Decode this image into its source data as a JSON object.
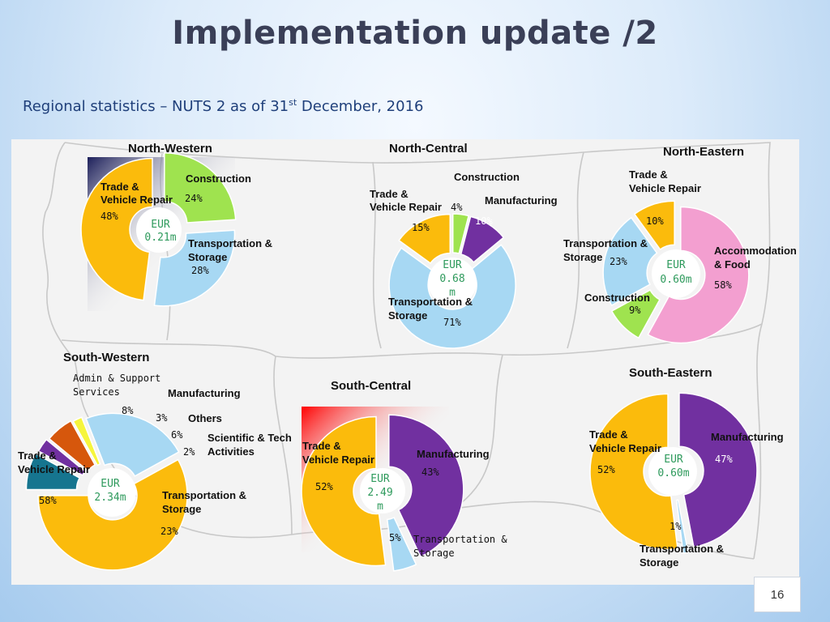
{
  "header": {
    "title": "Implementation update /2",
    "subtitle_prefix": "Regional statistics – NUTS 2 as of 31",
    "subtitle_sup": "st",
    "subtitle_suffix": " December, 2016"
  },
  "page_number": "16",
  "colors": {
    "trade": "#fbbb0c",
    "construction": "#9fe34f",
    "transport": "#a7d8f3",
    "manufacturing": "#7130a0",
    "accommodation": "#f39fd0",
    "admin": "#16758f",
    "others": "#d6570c",
    "scientific": "#f6f53c",
    "eur_text": "#2e9a5c"
  },
  "chart_data": [
    {
      "type": "pie",
      "region": "North-Western",
      "center_label": [
        "EUR",
        "0.21m"
      ],
      "slices": [
        {
          "label": "Trade & Vehicle Repair",
          "value": 48,
          "pct": "48%"
        },
        {
          "label": "Construction",
          "value": 24,
          "pct": "24%"
        },
        {
          "label": "Transportation & Storage",
          "value": 28,
          "pct": "28%"
        }
      ]
    },
    {
      "type": "pie",
      "region": "North-Central",
      "center_label": [
        "EUR",
        "0.68",
        "m"
      ],
      "slices": [
        {
          "label": "Trade & Vehicle Repair",
          "value": 15,
          "pct": "15%"
        },
        {
          "label": "Construction",
          "value": 4,
          "pct": "4%"
        },
        {
          "label": "Manufacturing",
          "value": 10,
          "pct": "10%"
        },
        {
          "label": "Transportation & Storage",
          "value": 71,
          "pct": "71%"
        }
      ]
    },
    {
      "type": "pie",
      "region": "North-Eastern",
      "center_label": [
        "EUR",
        "0.60m"
      ],
      "slices": [
        {
          "label": "Trade & Vehicle Repair",
          "value": 10,
          "pct": "10%"
        },
        {
          "label": "Transportation & Storage",
          "value": 23,
          "pct": "23%"
        },
        {
          "label": "Construction",
          "value": 9,
          "pct": "9%"
        },
        {
          "label": "Accommodation & Food",
          "value": 58,
          "pct": "58%"
        }
      ]
    },
    {
      "type": "pie",
      "region": "South-Western",
      "center_label": [
        "EUR",
        "2.34m"
      ],
      "slices": [
        {
          "label": "Trade & Vehicle Repair",
          "value": 58,
          "pct": "58%"
        },
        {
          "label": "Admin & Support Services",
          "value": 8,
          "pct": "8%"
        },
        {
          "label": "Manufacturing",
          "value": 3,
          "pct": "3%"
        },
        {
          "label": "Others",
          "value": 6,
          "pct": "6%"
        },
        {
          "label": "Scientific & Tech Activities",
          "value": 2,
          "pct": "2%"
        },
        {
          "label": "Transportation & Storage",
          "value": 23,
          "pct": "23%"
        }
      ]
    },
    {
      "type": "pie",
      "region": "South-Central",
      "center_label": [
        "EUR",
        "2.49",
        "m"
      ],
      "slices": [
        {
          "label": "Trade & Vehicle Repair",
          "value": 52,
          "pct": "52%"
        },
        {
          "label": "Manufacturing",
          "value": 43,
          "pct": "43%"
        },
        {
          "label": "Transportation & Storage",
          "value": 5,
          "pct": "5%"
        }
      ]
    },
    {
      "type": "pie",
      "region": "South-Eastern",
      "center_label": [
        "EUR",
        "0.60m"
      ],
      "slices": [
        {
          "label": "Trade & Vehicle Repair",
          "value": 52,
          "pct": "52%"
        },
        {
          "label": "Manufacturing",
          "value": 47,
          "pct": "47%"
        },
        {
          "label": "Transportation & Storage",
          "value": 1,
          "pct": "1%"
        }
      ]
    }
  ]
}
